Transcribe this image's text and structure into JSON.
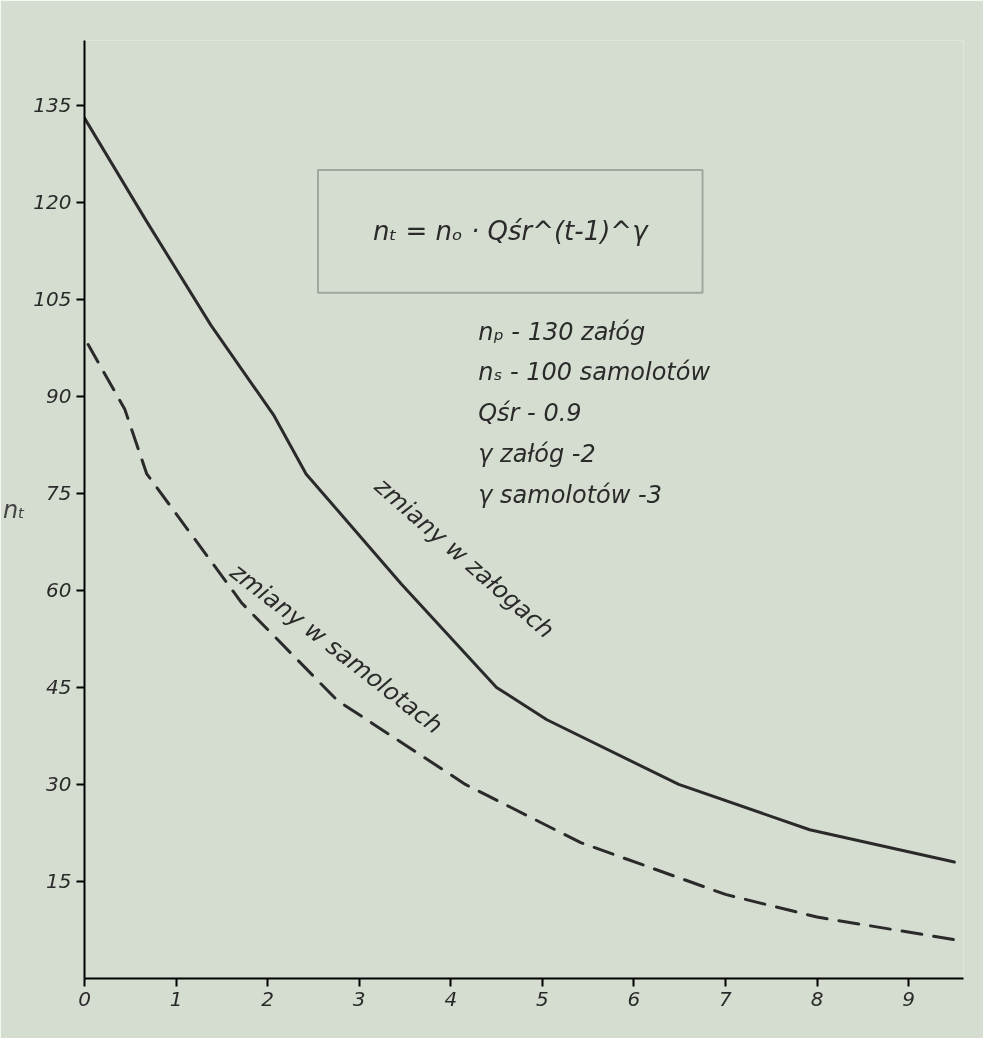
{
  "chart_data": {
    "type": "line",
    "ylabel": "nₜ",
    "annotations": [
      "nₜ = nₒ · Qśr^(t-1)^γ",
      "nₚ - 130 załóg",
      "nₛ - 100 samolotów",
      "Qśr - 0.9",
      "γ załóg -2",
      "γ samolotów -3"
    ],
    "series": [
      {
        "name": "zmiany w załogach",
        "color": "#2a2a2a",
        "line_style": "solid",
        "x": [
          0,
          0.68,
          1.38,
          2.07,
          2.42,
          3.46,
          4.5,
          5.05,
          6.49,
          7.92,
          9.5
        ],
        "values": [
          133,
          117,
          101,
          87,
          78,
          61,
          45,
          40,
          30,
          23,
          18
        ]
      },
      {
        "name": "zmiany w samolotach",
        "color": "#2a2a2a",
        "line_style": "dashed",
        "x": [
          0.04,
          0.44,
          0.68,
          1.72,
          2.76,
          4.16,
          5.42,
          7,
          8,
          9.5
        ],
        "values": [
          98,
          88,
          78,
          58,
          43,
          30,
          21,
          13,
          9.5,
          6
        ]
      }
    ],
    "xlim": [
      0,
      9.6
    ],
    "ylim": [
      0,
      145
    ],
    "xticks": [
      0,
      1,
      2,
      3,
      4,
      5,
      6,
      7,
      8,
      9
    ],
    "yticks": [
      15,
      30,
      45,
      60,
      75,
      90,
      105,
      120,
      135
    ],
    "grid": false,
    "marker": "none"
  }
}
